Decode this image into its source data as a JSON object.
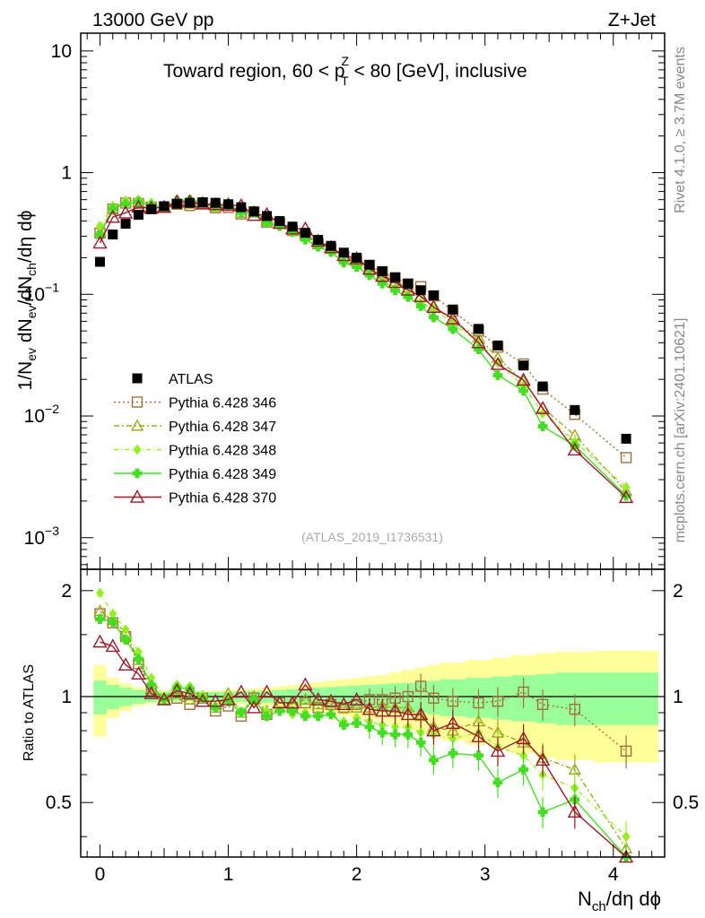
{
  "header": {
    "energy": "13000 GeV pp",
    "process": "Z+Jet"
  },
  "side": {
    "rivet": "Rivet 4.1.0, ≥ 3.7M events",
    "source": "mcplots.cern.ch [arXiv:2401.10621]"
  },
  "chart_data": {
    "type": "line",
    "title": "Toward region, 60 < p_T^Z < 80 [GeV], inclusive",
    "title_pre": "Toward region, 60 < p",
    "title_sup": "Z",
    "title_sub": "T",
    "title_post": " < 80 [GeV], inclusive",
    "watermark": "(ATLAS_2019_I1736531)",
    "xlabel": "N_ch/dη dϕ",
    "xlabel_main": "N",
    "xlabel_sub": "ch",
    "xlabel_rest": "/dη dϕ",
    "ylabel": "1/N_ev dN_ev/dN_ch/dη dϕ",
    "ylabel_parts": {
      "a": "1/N",
      "a_sub": "ev",
      "b": " dN",
      "b_sub": "ev",
      "c": "/dN",
      "c_sub": "ch",
      "d": "/dη dϕ"
    },
    "ratio_ylabel": "Ratio to ATLAS",
    "xlim": [
      -0.15,
      4.4
    ],
    "ylim": [
      0.00055,
      14
    ],
    "ratio_ylim": [
      0.35,
      2.3
    ],
    "x_ticks": [
      "0",
      "1",
      "2",
      "3",
      "4"
    ],
    "y_ticks": [
      {
        "value": 10,
        "base": "10",
        "exp": ""
      },
      {
        "value": 1,
        "base": "1",
        "exp": ""
      },
      {
        "value": 0.1,
        "base": "10",
        "exp": "−1"
      },
      {
        "value": 0.01,
        "base": "10",
        "exp": "−2"
      },
      {
        "value": 0.001,
        "base": "10",
        "exp": "−3"
      }
    ],
    "ratio_ticks": [
      "0.5",
      "1",
      "2"
    ],
    "x": [
      0,
      0.1,
      0.2,
      0.3,
      0.4,
      0.5,
      0.6,
      0.7,
      0.8,
      0.9,
      1.0,
      1.1,
      1.2,
      1.3,
      1.4,
      1.5,
      1.6,
      1.7,
      1.8,
      1.9,
      2.0,
      2.1,
      2.2,
      2.3,
      2.4,
      2.5,
      2.6,
      2.75,
      2.95,
      3.1,
      3.3,
      3.45,
      3.7,
      4.1
    ],
    "band_edges": [
      -0.05,
      0.05,
      0.15,
      0.25,
      0.35,
      0.45,
      0.55,
      0.65,
      0.75,
      0.85,
      0.95,
      1.05,
      1.15,
      1.25,
      1.35,
      1.45,
      1.55,
      1.65,
      1.75,
      1.85,
      1.95,
      2.05,
      2.15,
      2.25,
      2.35,
      2.45,
      2.55,
      2.65,
      2.85,
      3.05,
      3.2,
      3.4,
      3.55,
      3.85,
      4.35
    ],
    "stat_band": [
      0.11,
      0.08,
      0.06,
      0.045,
      0.035,
      0.03,
      0.028,
      0.028,
      0.028,
      0.03,
      0.032,
      0.035,
      0.038,
      0.04,
      0.045,
      0.05,
      0.055,
      0.06,
      0.065,
      0.07,
      0.075,
      0.08,
      0.085,
      0.09,
      0.095,
      0.1,
      0.11,
      0.12,
      0.13,
      0.14,
      0.15,
      0.16,
      0.17,
      0.17
    ],
    "syst_band": [
      0.23,
      0.13,
      0.09,
      0.06,
      0.045,
      0.04,
      0.035,
      0.035,
      0.035,
      0.04,
      0.045,
      0.05,
      0.055,
      0.06,
      0.07,
      0.08,
      0.09,
      0.1,
      0.11,
      0.12,
      0.13,
      0.14,
      0.15,
      0.17,
      0.19,
      0.21,
      0.23,
      0.25,
      0.27,
      0.29,
      0.31,
      0.33,
      0.34,
      0.35
    ],
    "atlas": {
      "name": "ATLAS",
      "color": "#000000",
      "values": [
        0.185,
        0.31,
        0.38,
        0.45,
        0.5,
        0.53,
        0.555,
        0.565,
        0.57,
        0.565,
        0.55,
        0.52,
        0.48,
        0.44,
        0.4,
        0.36,
        0.32,
        0.28,
        0.25,
        0.22,
        0.2,
        0.175,
        0.155,
        0.138,
        0.122,
        0.108,
        0.098,
        0.075,
        0.052,
        0.038,
        0.026,
        0.0175,
        0.0112,
        0.0065
      ]
    },
    "series": [
      {
        "name": "Pythia 6.428 346",
        "color": "#a0703c",
        "marker": "square",
        "dash": "2,3",
        "ratio": [
          1.72,
          1.62,
          1.48,
          1.24,
          1.04,
          0.98,
          0.99,
          0.95,
          0.99,
          0.91,
          0.94,
          0.88,
          0.99,
          0.89,
          0.96,
          0.93,
          0.96,
          0.93,
          0.95,
          0.93,
          0.95,
          0.98,
          0.98,
          0.99,
          1.0,
          1.07,
          0.99,
          0.97,
          0.96,
          0.97,
          1.03,
          0.95,
          0.92,
          0.7
        ]
      },
      {
        "name": "Pythia 6.428 347",
        "color": "#9aaa1e",
        "marker": "triangle",
        "dash": "6,3,2,3",
        "ratio": [
          1.75,
          1.65,
          1.52,
          1.27,
          1.05,
          0.98,
          1.02,
          0.98,
          1.0,
          0.93,
          1.02,
          0.9,
          1.0,
          0.91,
          0.96,
          0.95,
          0.98,
          0.95,
          0.96,
          0.93,
          0.93,
          0.93,
          0.94,
          0.93,
          0.93,
          0.88,
          0.82,
          0.8,
          0.85,
          0.79,
          0.74,
          0.67,
          0.62,
          0.37
        ]
      },
      {
        "name": "Pythia 6.428 348",
        "color": "#99ee22",
        "marker": "diamond",
        "dash": "5,3,1,3",
        "ratio": [
          1.97,
          1.72,
          1.55,
          1.34,
          1.13,
          1.0,
          1.08,
          1.07,
          1.01,
          0.93,
          1.0,
          0.91,
          0.97,
          0.91,
          0.91,
          0.89,
          0.9,
          0.88,
          0.89,
          0.85,
          0.87,
          0.85,
          0.83,
          0.82,
          0.82,
          0.79,
          0.78,
          0.76,
          0.79,
          0.72,
          0.68,
          0.6,
          0.55,
          0.4
        ]
      },
      {
        "name": "Pythia 6.428 349",
        "color": "#44dd22",
        "marker": "cross",
        "dash": "",
        "ratio": [
          1.66,
          1.63,
          1.45,
          1.28,
          1.08,
          0.98,
          1.06,
          1.05,
          0.99,
          0.93,
          0.97,
          0.9,
          0.98,
          0.88,
          0.91,
          0.91,
          0.88,
          0.88,
          0.89,
          0.83,
          0.84,
          0.82,
          0.79,
          0.78,
          0.78,
          0.74,
          0.66,
          0.69,
          0.68,
          0.57,
          0.62,
          0.47,
          0.51,
          0.34
        ]
      },
      {
        "name": "Pythia 6.428 370",
        "color": "#9a1a2a",
        "marker": "triangle-open",
        "dash": "",
        "ratio": [
          1.43,
          1.39,
          1.23,
          1.16,
          1.02,
          0.98,
          1.04,
          1.02,
          0.97,
          0.97,
          0.98,
          1.03,
          0.93,
          1.03,
          0.96,
          0.96,
          1.08,
          0.98,
          0.97,
          0.95,
          0.98,
          0.92,
          0.91,
          0.91,
          0.89,
          0.89,
          0.8,
          0.84,
          0.77,
          0.7,
          0.76,
          0.66,
          0.47,
          0.33
        ]
      }
    ]
  }
}
